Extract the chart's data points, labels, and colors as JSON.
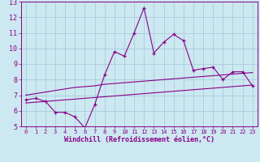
{
  "x": [
    0,
    1,
    2,
    3,
    4,
    5,
    6,
    7,
    8,
    9,
    10,
    11,
    12,
    13,
    14,
    15,
    16,
    17,
    18,
    19,
    20,
    21,
    22,
    23
  ],
  "y_main": [
    6.7,
    6.8,
    6.6,
    5.9,
    5.9,
    5.6,
    4.9,
    6.4,
    8.3,
    9.8,
    9.5,
    11.0,
    12.6,
    9.7,
    10.4,
    10.9,
    10.5,
    8.6,
    8.7,
    8.8,
    8.0,
    8.5,
    8.5,
    7.6
  ],
  "y_upper": [
    7.0,
    7.1,
    7.2,
    7.3,
    7.4,
    7.5,
    7.55,
    7.6,
    7.7,
    7.75,
    7.8,
    7.85,
    7.9,
    7.95,
    8.0,
    8.05,
    8.1,
    8.15,
    8.2,
    8.25,
    8.3,
    8.35,
    8.4,
    8.45
  ],
  "y_lower": [
    6.5,
    6.55,
    6.6,
    6.65,
    6.7,
    6.75,
    6.8,
    6.85,
    6.9,
    6.95,
    7.0,
    7.05,
    7.1,
    7.15,
    7.2,
    7.25,
    7.3,
    7.35,
    7.4,
    7.45,
    7.5,
    7.55,
    7.6,
    7.65
  ],
  "ylim": [
    5,
    13
  ],
  "yticks": [
    5,
    6,
    7,
    8,
    9,
    10,
    11,
    12,
    13
  ],
  "xlim": [
    -0.5,
    23.5
  ],
  "xticks": [
    0,
    1,
    2,
    3,
    4,
    5,
    6,
    7,
    8,
    9,
    10,
    11,
    12,
    13,
    14,
    15,
    16,
    17,
    18,
    19,
    20,
    21,
    22,
    23
  ],
  "xlabel": "Windchill (Refroidissement éolien,°C)",
  "line_color": "#880088",
  "bg_color": "#cce8f0",
  "grid_color": "#aaccdd",
  "title": ""
}
